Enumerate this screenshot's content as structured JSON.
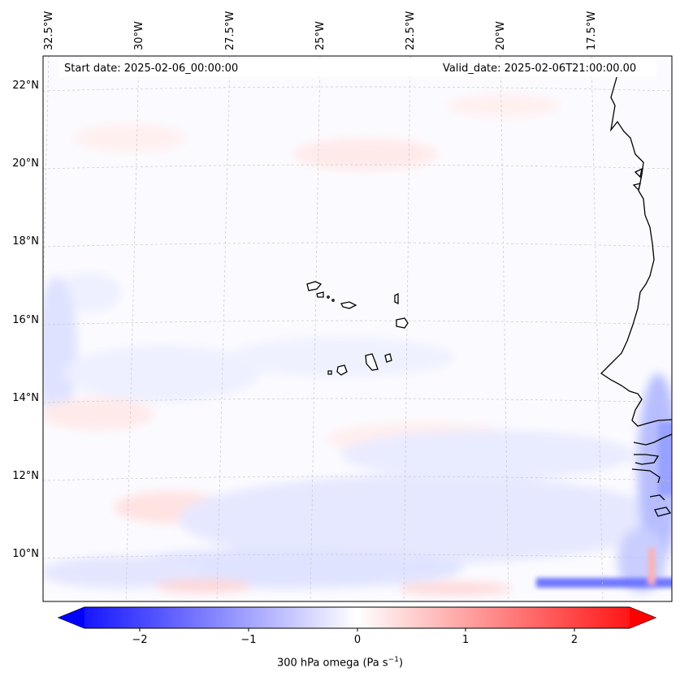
{
  "map": {
    "start_date": "Start date: 2025-02-06_00:00:00",
    "valid_date": "Valid_date: 2025-02-06T21:00:00.00",
    "lon_labels": [
      "32.5°W",
      "30°W",
      "27.5°W",
      "25°W",
      "22.5°W",
      "20°W",
      "17.5°W"
    ],
    "lat_labels": [
      "22°N",
      "20°N",
      "18°N",
      "16°N",
      "14°N",
      "12°N",
      "10°N"
    ],
    "colors": {
      "negative": "#0000ff",
      "positive": "#ff0000",
      "zero": "#ffffff",
      "coast": "#000000",
      "grid": "#bbbbbb"
    }
  },
  "colorbar": {
    "variable": "300 hPa omega (Pa s",
    "unit_exponent": "−1",
    "unit_close": ")",
    "ticks": [
      "−2",
      "−1",
      "0",
      "1",
      "2"
    ],
    "range": [
      -2.5,
      2.5
    ]
  }
}
